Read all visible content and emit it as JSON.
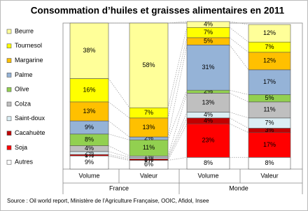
{
  "chart_data": {
    "type": "stacked-bar",
    "title": "Consommation d’huiles et graisses alimentaires en 2011",
    "categories": [
      "Volume",
      "Valeur",
      "Volume",
      "Valeur"
    ],
    "groups": [
      "France",
      "Monde"
    ],
    "source": "Source : Oil world report, Ministère de l’Agriculture Française, OOIC, Afidol, Insee",
    "ylim": [
      0,
      100
    ],
    "series": [
      {
        "name": "Autres",
        "color": "#ffffff",
        "values": [
          9,
          6,
          8,
          8
        ],
        "value_labels": [
          "9%",
          "6%",
          "8%",
          "8%"
        ]
      },
      {
        "name": "Soja",
        "color": "#ff0000",
        "values": [
          0,
          0,
          23,
          17
        ],
        "value_labels": [
          "0%",
          "0%",
          "23%",
          "17%"
        ]
      },
      {
        "name": "Cacahuète",
        "color": "#c00000",
        "values": [
          1,
          1,
          4,
          3
        ],
        "value_labels": [
          "1%",
          "1%",
          "4%",
          "3%"
        ]
      },
      {
        "name": "Saint-doux",
        "color": "#dbeef4",
        "values": [
          2,
          1,
          4,
          7
        ],
        "value_labels": [
          "2%",
          "1%",
          "4%",
          "7%"
        ]
      },
      {
        "name": "Colza",
        "color": "#bfbfbf",
        "values": [
          4,
          1,
          13,
          11
        ],
        "value_labels": [
          "4%",
          "1%",
          "13%",
          "11%"
        ]
      },
      {
        "name": "Olive",
        "color": "#92d050",
        "values": [
          8,
          11,
          2,
          5
        ],
        "value_labels": [
          "8%",
          "11%",
          "2%",
          "5%"
        ]
      },
      {
        "name": "Palme",
        "color": "#95b3d7",
        "values": [
          9,
          2,
          31,
          17
        ],
        "value_labels": [
          "9%",
          "2%",
          "31%",
          "17%"
        ]
      },
      {
        "name": "Margarine",
        "color": "#ffc000",
        "values": [
          13,
          13,
          5,
          12
        ],
        "value_labels": [
          "13%",
          "13%",
          "5%",
          "12%"
        ]
      },
      {
        "name": "Tournesol",
        "color": "#ffff00",
        "values": [
          16,
          7,
          7,
          7
        ],
        "value_labels": [
          "16%",
          "7%",
          "7%",
          "7%"
        ]
      },
      {
        "name": "Beurre",
        "color": "#ffff99",
        "values": [
          38,
          58,
          4,
          12
        ],
        "value_labels": [
          "38%",
          "58%",
          "4%",
          "12%"
        ]
      }
    ]
  }
}
